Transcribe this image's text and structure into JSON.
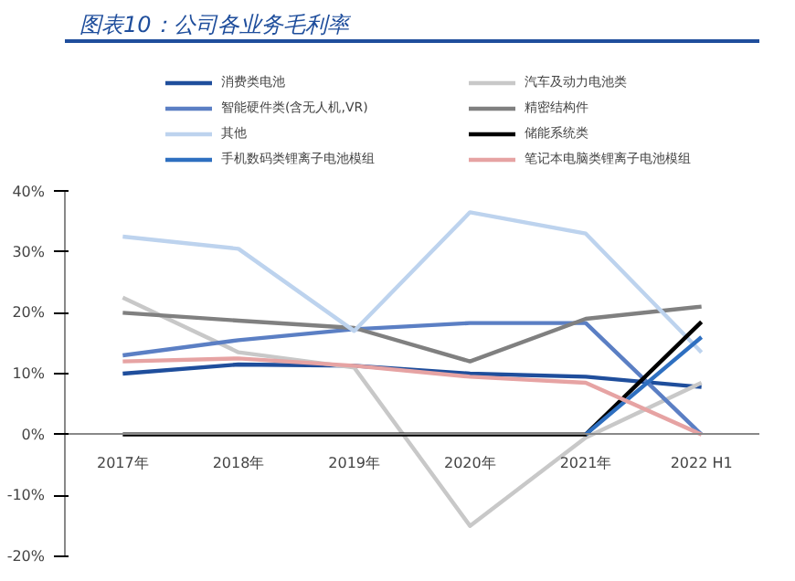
{
  "chart_data": {
    "type": "line",
    "title": "图表10：公司各业务毛利率",
    "categories": [
      "2017年",
      "2018年",
      "2019年",
      "2020年",
      "2021年",
      "2022 H1"
    ],
    "series": [
      {
        "name": "消费类电池",
        "color": "#1f4e9c",
        "values": [
          10,
          11.5,
          11.3,
          10,
          9.5,
          7.8
        ]
      },
      {
        "name": "汽车及动力电池类",
        "color": "#c8c8c8",
        "values": [
          22.5,
          13.5,
          11,
          -15,
          -0.5,
          8.5
        ]
      },
      {
        "name": "智能硬件类(含无人机,VR)",
        "color": "#5b7fc4",
        "values": [
          13,
          15.5,
          17.3,
          18.3,
          18.3,
          0
        ]
      },
      {
        "name": "精密结构件",
        "color": "#808080",
        "values": [
          20,
          18.7,
          17.5,
          12,
          19,
          21
        ]
      },
      {
        "name": "其他",
        "color": "#bdd3ee",
        "values": [
          32.5,
          30.5,
          17,
          36.5,
          33,
          13.5
        ]
      },
      {
        "name": "储能系统类",
        "color": "#000000",
        "values": [
          0,
          0,
          0,
          0,
          0,
          18.5
        ]
      },
      {
        "name": "手机数码类锂离子电池模组",
        "color": "#2e6fc0",
        "values": [
          null,
          null,
          null,
          null,
          0,
          16
        ]
      },
      {
        "name": "笔记本电脑类锂离子电池模组",
        "color": "#e6a3a3",
        "values": [
          12,
          12.5,
          11.3,
          9.5,
          8.5,
          0
        ]
      }
    ],
    "ylim": [
      -20,
      40
    ],
    "yticks": [
      {
        "value": -20,
        "label": "-20%"
      },
      {
        "value": -10,
        "label": "-10%"
      },
      {
        "value": 0,
        "label": "0%"
      },
      {
        "value": 10,
        "label": "10%"
      },
      {
        "value": 20,
        "label": "20%"
      },
      {
        "value": 30,
        "label": "30%"
      },
      {
        "value": 40,
        "label": "40%"
      }
    ],
    "grid": false,
    "legend": "top",
    "marker": "none",
    "line_style": "solid"
  }
}
